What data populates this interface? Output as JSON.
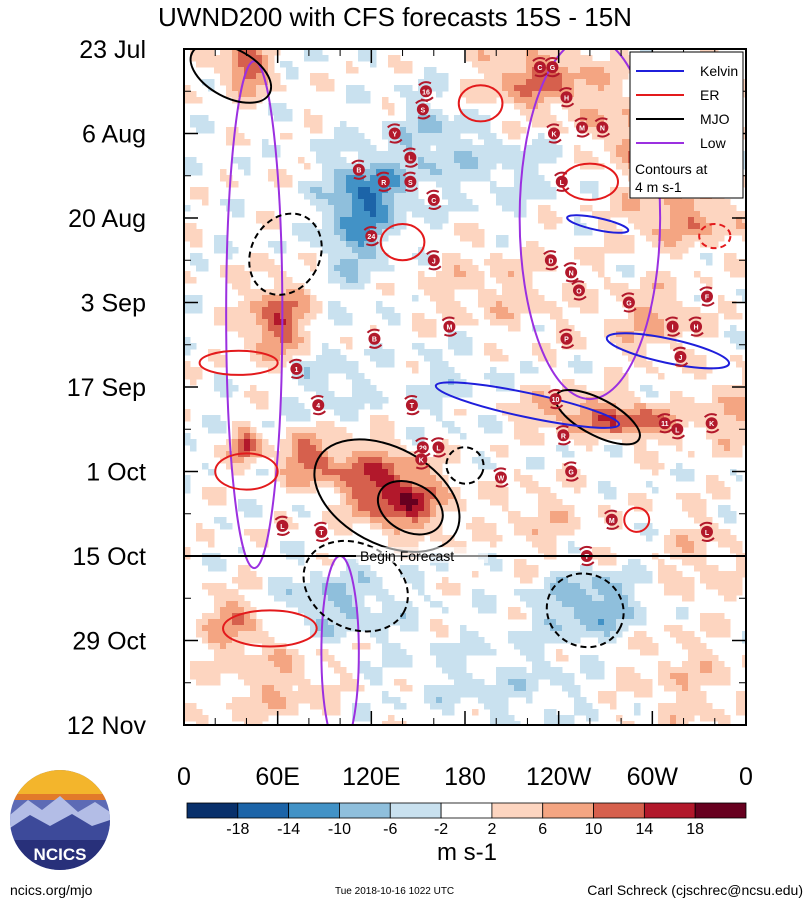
{
  "chart_data": {
    "type": "heatmap",
    "title": "UWND200 with CFS forecasts  15S - 15N",
    "xlabel": "",
    "ylabel": "",
    "x_ticks": [
      "0",
      "60E",
      "120E",
      "180",
      "120W",
      "60W",
      "0"
    ],
    "x_values": [
      0,
      60,
      120,
      180,
      240,
      300,
      360
    ],
    "xlim": [
      0,
      360
    ],
    "y_ticks": [
      "23 Jul",
      "6 Aug",
      "20 Aug",
      "3 Sep",
      "17 Sep",
      "1 Oct",
      "15 Oct",
      "29 Oct",
      "12 Nov"
    ],
    "y_values": [
      0,
      14,
      28,
      42,
      56,
      70,
      84,
      98,
      112
    ],
    "ylim": [
      0,
      112
    ],
    "forecast_start": {
      "label": "Begin Forecast",
      "day": 84
    },
    "colorbar": {
      "label": "m s-1",
      "tick_labels": [
        "-18",
        "-14",
        "-10",
        "-6",
        "-2",
        "2",
        "6",
        "10",
        "14",
        "18"
      ],
      "colors": [
        "#08306b",
        "#1c64a8",
        "#4292c6",
        "#8fbfdc",
        "#c9e1ef",
        "#ffffff",
        "#fdd5c0",
        "#f4a582",
        "#d6604d",
        "#b2182b",
        "#67001f"
      ]
    },
    "legend": {
      "position": "top-right",
      "entries": [
        {
          "name": "Kelvin",
          "color": "#1f1fdb"
        },
        {
          "name": "ER",
          "color": "#e31a1c"
        },
        {
          "name": "MJO",
          "color": "#000000"
        },
        {
          "name": "Low",
          "color": "#9b30e0"
        }
      ],
      "note_line1": "Contours at",
      "note_line2": "4 m s-1"
    },
    "contours": [
      {
        "type": "Low",
        "lon": 45,
        "day": 44,
        "rlon": 18,
        "rday": 42
      },
      {
        "type": "Low",
        "lon": 100,
        "day": 100,
        "rlon": 12,
        "rday": 16
      },
      {
        "type": "Low",
        "lon": 260,
        "day": 28,
        "rlon": 45,
        "rday": 30
      },
      {
        "type": "MJO",
        "lon": 130,
        "day": 74,
        "rlon": 50,
        "rday": 8
      },
      {
        "type": "MJO",
        "lon": 145,
        "day": 76,
        "rlon": 22,
        "rday": 4
      },
      {
        "type": "MJO",
        "lon": 65,
        "day": 34,
        "rlon": 22,
        "rday": 7,
        "dashed": true
      },
      {
        "type": "MJO",
        "lon": 180,
        "day": 69,
        "rlon": 12,
        "rday": 3,
        "dashed": true
      },
      {
        "type": "MJO",
        "lon": 110,
        "day": 89,
        "rlon": 35,
        "rday": 7,
        "dashed": true
      },
      {
        "type": "MJO",
        "lon": 257,
        "day": 93,
        "rlon": 25,
        "rday": 6,
        "dashed": true
      },
      {
        "type": "MJO",
        "lon": 265,
        "day": 61,
        "rlon": 30,
        "rday": 3
      },
      {
        "type": "MJO",
        "lon": 30,
        "day": 4,
        "rlon": 28,
        "rday": 4
      },
      {
        "type": "ER",
        "lon": 40,
        "day": 70,
        "rlon": 20,
        "rday": 3
      },
      {
        "type": "ER",
        "lon": 35,
        "day": 52,
        "rlon": 25,
        "rday": 2
      },
      {
        "type": "ER",
        "lon": 55,
        "day": 96,
        "rlon": 30,
        "rday": 3
      },
      {
        "type": "ER",
        "lon": 260,
        "day": 22,
        "rlon": 18,
        "rday": 3
      },
      {
        "type": "ER",
        "lon": 190,
        "day": 9,
        "rlon": 14,
        "rday": 3
      },
      {
        "type": "ER",
        "lon": 140,
        "day": 32,
        "rlon": 14,
        "rday": 3
      },
      {
        "type": "ER",
        "lon": 290,
        "day": 78,
        "rlon": 8,
        "rday": 2
      },
      {
        "type": "ER",
        "lon": 340,
        "day": 31,
        "rlon": 10,
        "rday": 2,
        "dashed": true
      },
      {
        "type": "Kelvin",
        "lon": 220,
        "day": 59,
        "rlon": 60,
        "rday": 2
      },
      {
        "type": "Kelvin",
        "lon": 310,
        "day": 50,
        "rlon": 40,
        "rday": 2
      },
      {
        "type": "Kelvin",
        "lon": 265,
        "day": 29,
        "rlon": 20,
        "rday": 1
      }
    ],
    "storms": [
      {
        "label": "16",
        "lon": 155,
        "day": 7
      },
      {
        "label": "S",
        "lon": 153,
        "day": 10
      },
      {
        "label": "Y",
        "lon": 135,
        "day": 14
      },
      {
        "label": "L",
        "lon": 145,
        "day": 18
      },
      {
        "label": "B",
        "lon": 112,
        "day": 20
      },
      {
        "label": "R",
        "lon": 128,
        "day": 22
      },
      {
        "label": "S",
        "lon": 145,
        "day": 22
      },
      {
        "label": "C",
        "lon": 160,
        "day": 25
      },
      {
        "label": "24",
        "lon": 120,
        "day": 31
      },
      {
        "label": "J",
        "lon": 160,
        "day": 35
      },
      {
        "label": "M",
        "lon": 170,
        "day": 46
      },
      {
        "label": "B",
        "lon": 122,
        "day": 48
      },
      {
        "label": "1",
        "lon": 72,
        "day": 53
      },
      {
        "label": "4",
        "lon": 86,
        "day": 59
      },
      {
        "label": "T",
        "lon": 146,
        "day": 59
      },
      {
        "label": "29",
        "lon": 153,
        "day": 66
      },
      {
        "label": "L",
        "lon": 163,
        "day": 66
      },
      {
        "label": "K",
        "lon": 152,
        "day": 68
      },
      {
        "label": "W",
        "lon": 203,
        "day": 71
      },
      {
        "label": "L",
        "lon": 63,
        "day": 79
      },
      {
        "label": "T",
        "lon": 88,
        "day": 80
      },
      {
        "label": "G",
        "lon": 236,
        "day": 3
      },
      {
        "label": "C",
        "lon": 228,
        "day": 3
      },
      {
        "label": "H",
        "lon": 245,
        "day": 8
      },
      {
        "label": "K",
        "lon": 237,
        "day": 14
      },
      {
        "label": "M",
        "lon": 255,
        "day": 13
      },
      {
        "label": "N",
        "lon": 268,
        "day": 13
      },
      {
        "label": "L",
        "lon": 242,
        "day": 22
      },
      {
        "label": "D",
        "lon": 235,
        "day": 35
      },
      {
        "label": "N",
        "lon": 248,
        "day": 37
      },
      {
        "label": "O",
        "lon": 253,
        "day": 40
      },
      {
        "label": "G",
        "lon": 285,
        "day": 42
      },
      {
        "label": "P",
        "lon": 245,
        "day": 48
      },
      {
        "label": "H",
        "lon": 328,
        "day": 46
      },
      {
        "label": "I",
        "lon": 313,
        "day": 46
      },
      {
        "label": "J",
        "lon": 318,
        "day": 51
      },
      {
        "label": "10",
        "lon": 238,
        "day": 58
      },
      {
        "label": "R",
        "lon": 243,
        "day": 64
      },
      {
        "label": "G",
        "lon": 248,
        "day": 70
      },
      {
        "label": "11",
        "lon": 308,
        "day": 62
      },
      {
        "label": "L",
        "lon": 316,
        "day": 63
      },
      {
        "label": "K",
        "lon": 338,
        "day": 62
      },
      {
        "label": "M",
        "lon": 274,
        "day": 78
      },
      {
        "label": "T",
        "lon": 258,
        "day": 84
      },
      {
        "label": "L",
        "lon": 335,
        "day": 80
      },
      {
        "label": "F",
        "lon": 335,
        "day": 41
      }
    ]
  },
  "footer": {
    "left": "ncics.org/mjo",
    "middle": "Tue 2018-10-16 1022 UTC",
    "right": "Carl Schreck (cjschrec@ncsu.edu)",
    "logo_text": "NCICS"
  }
}
